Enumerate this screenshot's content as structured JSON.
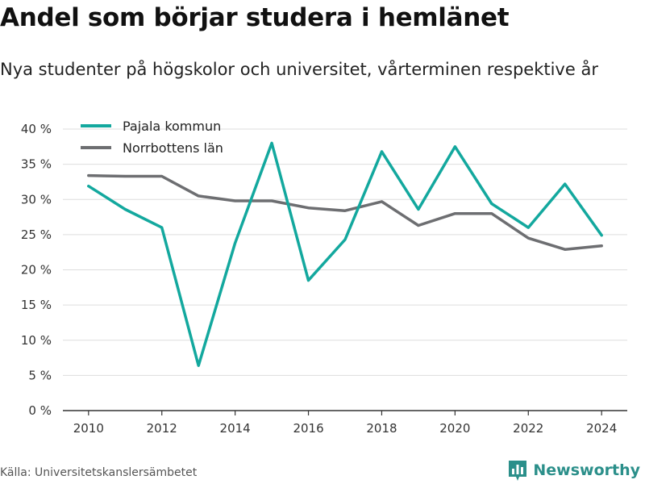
{
  "header": {
    "title": "Andel som börjar studera i hemlänet",
    "subtitle": "Nya studenter på högskolor och universitet, vårterminen respektive år"
  },
  "footer": {
    "source": "Källa: Universitetskanslersämbetet",
    "brand": "Newsworthy",
    "brand_icon": "bar-chart-logo-icon",
    "brand_color": "#2b8f8a"
  },
  "chart_data": {
    "type": "line",
    "title": "Andel som börjar studera i hemlänet",
    "subtitle": "Nya studenter på högskolor och universitet, vårterminen respektive år",
    "xlabel": "",
    "ylabel": "",
    "x": [
      2010,
      2011,
      2012,
      2013,
      2014,
      2015,
      2016,
      2017,
      2018,
      2019,
      2020,
      2021,
      2022,
      2023,
      2024
    ],
    "xlim": [
      2009.3,
      2024.7
    ],
    "ylim": [
      0,
      40
    ],
    "x_ticks": [
      2010,
      2012,
      2014,
      2016,
      2018,
      2020,
      2022,
      2024
    ],
    "y_ticks": [
      0,
      5,
      10,
      15,
      20,
      25,
      30,
      35,
      40
    ],
    "y_tick_labels": [
      "0 %",
      "5 %",
      "10 %",
      "15 %",
      "20 %",
      "25 %",
      "30 %",
      "35 %",
      "40 %"
    ],
    "grid": true,
    "legend_position": "top-left",
    "series": [
      {
        "name": "Pajala kommun",
        "color": "#13a89e",
        "values": [
          31.9,
          28.6,
          26.0,
          6.4,
          23.8,
          38.0,
          18.5,
          24.3,
          36.8,
          28.6,
          37.5,
          29.4,
          26.0,
          32.2,
          24.9
        ]
      },
      {
        "name": "Norrbottens län",
        "color": "#6d6e71",
        "values": [
          33.4,
          33.3,
          33.3,
          30.5,
          29.8,
          29.8,
          28.8,
          28.4,
          29.7,
          26.3,
          28.0,
          28.0,
          24.5,
          22.9,
          23.4
        ]
      }
    ]
  }
}
